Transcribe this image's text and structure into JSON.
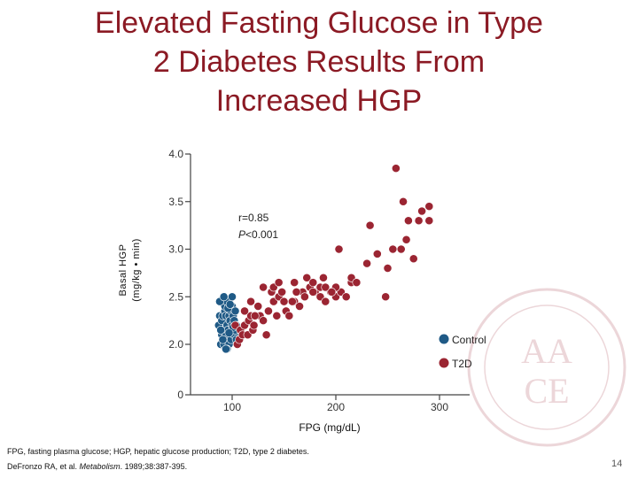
{
  "slide": {
    "title": "Elevated Fasting Glucose in Type\n2 Diabetes Results From\nIncreased HGP",
    "footnote": "FPG, fasting plasma glucose; HGP, hepatic glucose production; T2D, type 2 diabetes.",
    "citation_authors": "DeFronzo RA, et al. ",
    "citation_journal": "Metabolism",
    "citation_details": ". 1989;38:387-395.",
    "page_number": "14",
    "watermark_text": "AACE",
    "colors": {
      "title": "#8b1a24",
      "control": "#1f5a86",
      "t2d": "#9b2532"
    }
  },
  "chart_data": {
    "type": "scatter",
    "xlabel": "FPG (mg/dL)",
    "ylabel_line1": "Basal HGP",
    "ylabel_line2": "(mg/kg • min)",
    "xlim": [
      70,
      300
    ],
    "ylim": [
      0,
      4.0
    ],
    "x_ticks": [
      {
        "value": 100,
        "label": "100"
      },
      {
        "value": 200,
        "label": "200"
      },
      {
        "value": 300,
        "label": "300"
      }
    ],
    "y_ticks": [
      {
        "value": 0,
        "label": "0"
      },
      {
        "value": 2.0,
        "label": "2.0"
      },
      {
        "value": 2.5,
        "label": "2.5"
      },
      {
        "value": 3.0,
        "label": "3.0"
      },
      {
        "value": 3.5,
        "label": "3.5"
      },
      {
        "value": 4.0,
        "label": "4.0"
      }
    ],
    "annotation_r": "r=0.85",
    "annotation_p_italic": "P",
    "annotation_p_rest": "<0.001",
    "legend_position": "right",
    "series": [
      {
        "name": "Control",
        "color": "#1f5a86",
        "points": [
          [
            87,
            2.2
          ],
          [
            88,
            2.3
          ],
          [
            89,
            2.0
          ],
          [
            90,
            2.1
          ],
          [
            90,
            2.25
          ],
          [
            91,
            2.3
          ],
          [
            92,
            2.15
          ],
          [
            92,
            2.0
          ],
          [
            93,
            2.35
          ],
          [
            93,
            2.4
          ],
          [
            94,
            2.3
          ],
          [
            94,
            2.1
          ],
          [
            95,
            2.2
          ],
          [
            95,
            2.45
          ],
          [
            96,
            2.15
          ],
          [
            97,
            2.3
          ],
          [
            97,
            2.0
          ],
          [
            98,
            2.25
          ],
          [
            99,
            2.35
          ],
          [
            99,
            2.05
          ],
          [
            100,
            2.2
          ],
          [
            100,
            2.4
          ],
          [
            101,
            2.3
          ],
          [
            102,
            2.1
          ],
          [
            102,
            2.25
          ],
          [
            103,
            2.15
          ],
          [
            103,
            2.35
          ],
          [
            104,
            2.2
          ],
          [
            104,
            2.05
          ],
          [
            88,
            2.45
          ],
          [
            89,
            2.15
          ],
          [
            91,
            2.05
          ],
          [
            96,
            2.38
          ],
          [
            98,
            2.42
          ],
          [
            101,
            2.18
          ],
          [
            95,
            1.95
          ],
          [
            92,
            2.5
          ],
          [
            100,
            2.5
          ],
          [
            94,
            1.95
          ],
          [
            97,
            2.12
          ]
        ]
      },
      {
        "name": "T2D",
        "color": "#9b2532",
        "points": [
          [
            103,
            2.2
          ],
          [
            105,
            2.0
          ],
          [
            107,
            2.05
          ],
          [
            108,
            2.15
          ],
          [
            110,
            2.1
          ],
          [
            112,
            2.2
          ],
          [
            115,
            2.1
          ],
          [
            116,
            2.25
          ],
          [
            118,
            2.3
          ],
          [
            120,
            2.15
          ],
          [
            121,
            2.2
          ],
          [
            125,
            2.4
          ],
          [
            127,
            2.3
          ],
          [
            130,
            2.25
          ],
          [
            133,
            2.1
          ],
          [
            135,
            2.35
          ],
          [
            140,
            2.45
          ],
          [
            143,
            2.3
          ],
          [
            145,
            2.5
          ],
          [
            150,
            2.45
          ],
          [
            152,
            2.35
          ],
          [
            155,
            2.3
          ],
          [
            160,
            2.45
          ],
          [
            165,
            2.4
          ],
          [
            168,
            2.55
          ],
          [
            170,
            2.5
          ],
          [
            175,
            2.6
          ],
          [
            180,
            2.55
          ],
          [
            185,
            2.5
          ],
          [
            190,
            2.45
          ],
          [
            200,
            2.5
          ],
          [
            205,
            2.55
          ],
          [
            210,
            2.5
          ],
          [
            112,
            2.35
          ],
          [
            118,
            2.45
          ],
          [
            122,
            2.3
          ],
          [
            138,
            2.55
          ],
          [
            148,
            2.55
          ],
          [
            158,
            2.45
          ],
          [
            162,
            2.55
          ],
          [
            130,
            2.6
          ],
          [
            140,
            2.6
          ],
          [
            145,
            2.65
          ],
          [
            160,
            2.65
          ],
          [
            172,
            2.7
          ],
          [
            178,
            2.65
          ],
          [
            195,
            2.55
          ],
          [
            200,
            2.6
          ],
          [
            215,
            2.65
          ],
          [
            215,
            2.7
          ],
          [
            185,
            2.6
          ],
          [
            178,
            2.55
          ],
          [
            188,
            2.7
          ],
          [
            190,
            2.6
          ],
          [
            196,
            2.55
          ],
          [
            203,
            3.0
          ],
          [
            220,
            2.65
          ],
          [
            230,
            2.85
          ],
          [
            240,
            2.95
          ],
          [
            248,
            2.5
          ],
          [
            250,
            2.8
          ],
          [
            255,
            3.0
          ],
          [
            263,
            3.0
          ],
          [
            233,
            3.25
          ],
          [
            265,
            3.5
          ],
          [
            270,
            3.3
          ],
          [
            280,
            3.3
          ],
          [
            283,
            3.4
          ],
          [
            290,
            3.45
          ],
          [
            290,
            3.3
          ],
          [
            258,
            3.85
          ],
          [
            268,
            3.1
          ],
          [
            275,
            2.9
          ]
        ]
      }
    ]
  }
}
